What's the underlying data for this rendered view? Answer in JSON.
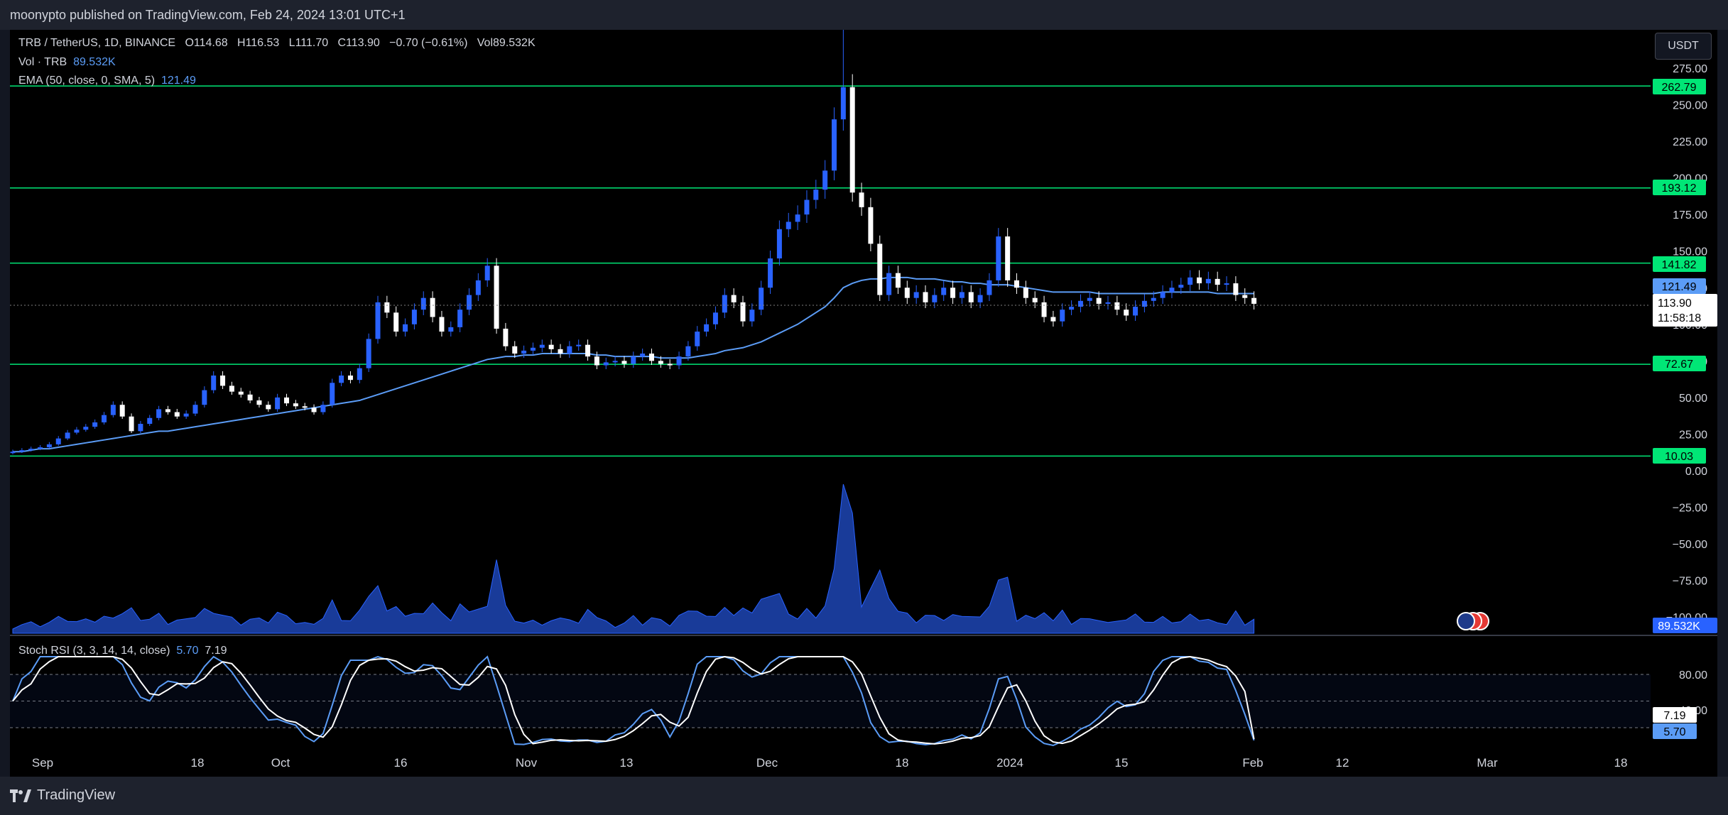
{
  "header": {
    "published_by": "moonypto published on TradingView.com, Feb 24, 2024 13:01 UTC+1"
  },
  "footer": {
    "brand": "TradingView"
  },
  "legend": {
    "symbol": "TRB / TetherUS, 1D, BINANCE",
    "o_label": "O",
    "o": "114.68",
    "h_label": "H",
    "h": "116.53",
    "l_label": "L",
    "l": "111.70",
    "c_label": "C",
    "c": "113.90",
    "change": "−0.70 (−0.61%)",
    "vol_label": "Vol",
    "vol": "89.532K",
    "vol_line_label": "Vol · TRB",
    "vol_line_value": "89.532K",
    "ema_label": "EMA (50, close, 0, SMA, 5)",
    "ema_value": "121.49",
    "stoch_label": "Stoch RSI (3, 3, 14, 14, close)",
    "stoch_k": "5.70",
    "stoch_d": "7.19"
  },
  "currency_button": "USDT",
  "price_badges": {
    "ema": "121.49",
    "last": "113.90",
    "countdown": "11:58:18",
    "volume": "89.532K",
    "stoch_d": "7.19",
    "stoch_k": "5.70"
  },
  "colors": {
    "background": "#000000",
    "bull": "#2962ff",
    "bear": "#ffffff",
    "level": "#00e676",
    "ema": "#5b9cf6",
    "volume": "#2962ff",
    "stoch_k": "#5b9cf6",
    "stoch_d": "#ffffff"
  },
  "chart_data": [
    {
      "type": "candlestick",
      "title": "TRB / TetherUS, 1D, BINANCE",
      "x_ticks": [
        "Sep",
        "18",
        "Oct",
        "16",
        "Nov",
        "13",
        "Dec",
        "18",
        "2024",
        "15",
        "Feb",
        "12",
        "Mar",
        "18"
      ],
      "y_ticks": [
        "275.00",
        "250.00",
        "225.00",
        "200.00",
        "175.00",
        "150.00",
        "125.00",
        "100.00",
        "75.00",
        "50.00",
        "25.00",
        "0.00",
        "−25.00",
        "−50.00",
        "−75.00",
        "−100.00"
      ],
      "ylim": [
        -100,
        275
      ],
      "horizontal_levels": [
        262.79,
        193.12,
        141.82,
        72.67,
        10.03
      ],
      "closes": [
        13,
        14,
        15,
        16,
        18,
        22,
        26,
        28,
        30,
        33,
        38,
        45,
        37,
        27,
        32,
        36,
        42,
        40,
        37,
        39,
        45,
        55,
        65,
        58,
        54,
        52,
        48,
        45,
        42,
        50,
        46,
        44,
        43,
        40,
        45,
        60,
        65,
        62,
        70,
        90,
        115,
        108,
        95,
        100,
        110,
        118,
        105,
        95,
        98,
        110,
        120,
        130,
        140,
        97,
        85,
        80,
        82,
        84,
        86,
        83,
        80,
        85,
        86,
        78,
        72,
        74,
        75,
        73,
        78,
        80,
        75,
        73,
        72,
        78,
        85,
        95,
        100,
        108,
        120,
        115,
        102,
        110,
        125,
        145,
        165,
        170,
        175,
        185,
        192,
        205,
        240,
        262,
        190,
        180,
        155,
        120,
        135,
        125,
        118,
        122,
        115,
        120,
        125,
        118,
        122,
        115,
        120,
        130,
        160,
        130,
        125,
        118,
        115,
        105,
        102,
        110,
        112,
        116,
        118,
        114,
        115,
        110,
        106,
        112,
        116,
        118,
        122,
        125,
        127,
        132,
        128,
        131,
        127,
        128,
        120,
        118,
        114
      ],
      "ema": [
        13,
        13,
        14,
        15,
        15,
        16,
        17,
        18,
        19,
        20,
        21,
        22,
        23,
        24,
        25,
        26,
        27,
        27,
        28,
        29,
        30,
        31,
        32,
        33,
        34,
        35,
        36,
        37,
        38,
        39,
        40,
        41,
        42,
        43,
        44,
        45,
        46,
        47,
        48,
        50,
        52,
        54,
        56,
        58,
        60,
        62,
        64,
        66,
        68,
        70,
        72,
        74,
        76,
        77,
        78,
        78,
        79,
        79,
        80,
        80,
        80,
        80,
        80,
        80,
        79,
        79,
        78,
        78,
        78,
        78,
        78,
        77,
        77,
        77,
        77,
        78,
        79,
        80,
        82,
        83,
        84,
        86,
        88,
        91,
        94,
        97,
        100,
        104,
        108,
        112,
        118,
        125,
        128,
        130,
        131,
        131,
        132,
        132,
        132,
        131,
        131,
        131,
        130,
        129,
        129,
        128,
        128,
        127,
        127,
        127,
        126,
        125,
        124,
        123,
        122,
        122,
        122,
        122,
        122,
        121,
        121,
        121,
        121,
        121,
        121,
        121,
        122,
        122,
        122,
        122,
        122,
        122,
        121,
        121,
        121,
        121,
        121
      ]
    },
    {
      "type": "area",
      "title": "Vol · TRB",
      "last_value": "89.532K"
    },
    {
      "type": "line",
      "title": "Stoch RSI (3, 3, 14, 14, close)",
      "y_ticks": [
        "80.00",
        "40.00"
      ],
      "ylim": [
        0,
        100
      ],
      "bands": [
        80,
        50,
        20
      ],
      "k_last": 5.7,
      "d_last": 7.19
    }
  ]
}
